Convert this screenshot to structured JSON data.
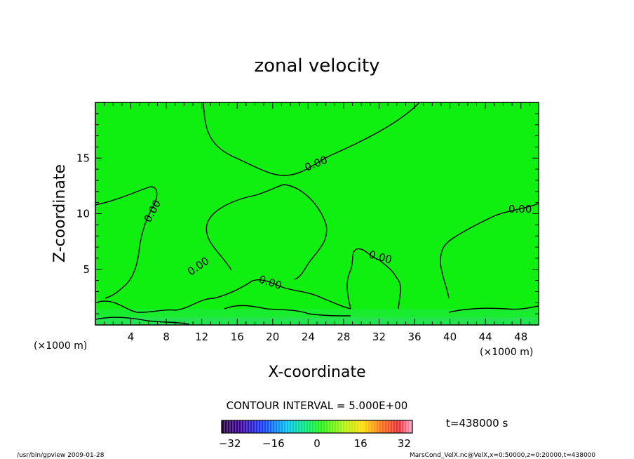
{
  "chart_data": {
    "type": "heatmap",
    "title": "zonal velocity",
    "xlabel": "X-coordinate",
    "ylabel": "Z-coordinate",
    "x_unit": "(×1000 m)",
    "y_unit": "(×1000 m)",
    "xlim": [
      0,
      50
    ],
    "ylim": [
      0,
      20
    ],
    "x_ticks": [
      "4",
      "8",
      "12",
      "16",
      "20",
      "24",
      "28",
      "32",
      "36",
      "40",
      "44",
      "48"
    ],
    "y_ticks": [
      "5",
      "10",
      "15"
    ],
    "contour_label": "0.00",
    "contour_interval": "CONTOUR INTERVAL = 5.000E+00",
    "time_label": "t=438000 s",
    "colorbar": {
      "ticks": [
        "−32",
        "−16",
        "0",
        "16",
        "32"
      ],
      "range": [
        -35,
        35
      ]
    },
    "background_color": "#10f010"
  },
  "footer": {
    "left": "/usr/bin/gpview   2009-01-28",
    "right": "MarsCond_VelX.nc@VelX,x=0:50000,z=0:20000,t=438000"
  }
}
